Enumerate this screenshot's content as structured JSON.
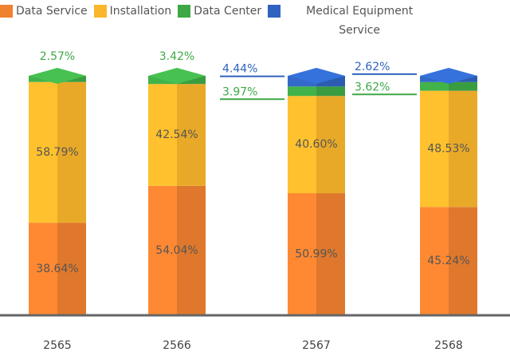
{
  "chart_data": {
    "type": "stacked-bar",
    "categories": [
      "2565",
      "2566",
      "2567",
      "2568"
    ],
    "series": [
      {
        "name": "Data Service",
        "color": "#f0812f",
        "values": [
          38.64,
          54.04,
          50.99,
          45.24
        ],
        "value_labels": [
          "38.64%",
          "54.04%",
          "50.99%",
          "45.24%"
        ]
      },
      {
        "name": "Installation",
        "color": "#fbb62b",
        "values": [
          58.79,
          42.54,
          40.6,
          48.53
        ],
        "value_labels": [
          "58.79%",
          "42.54%",
          "40.60%",
          "48.53%"
        ]
      },
      {
        "name": "Data Center",
        "color": "#3ea846",
        "values": [
          2.57,
          3.42,
          3.97,
          3.62
        ],
        "value_labels": [
          "2.57%",
          "3.42%",
          "3.97%",
          "3.62%"
        ]
      },
      {
        "name": "Medical Equipment Service",
        "color": "#2f63bf",
        "values": [
          null,
          null,
          4.44,
          2.62
        ],
        "value_labels": [
          null,
          null,
          "4.44%",
          "2.62%"
        ]
      }
    ],
    "ylim": [
      0,
      110
    ]
  }
}
